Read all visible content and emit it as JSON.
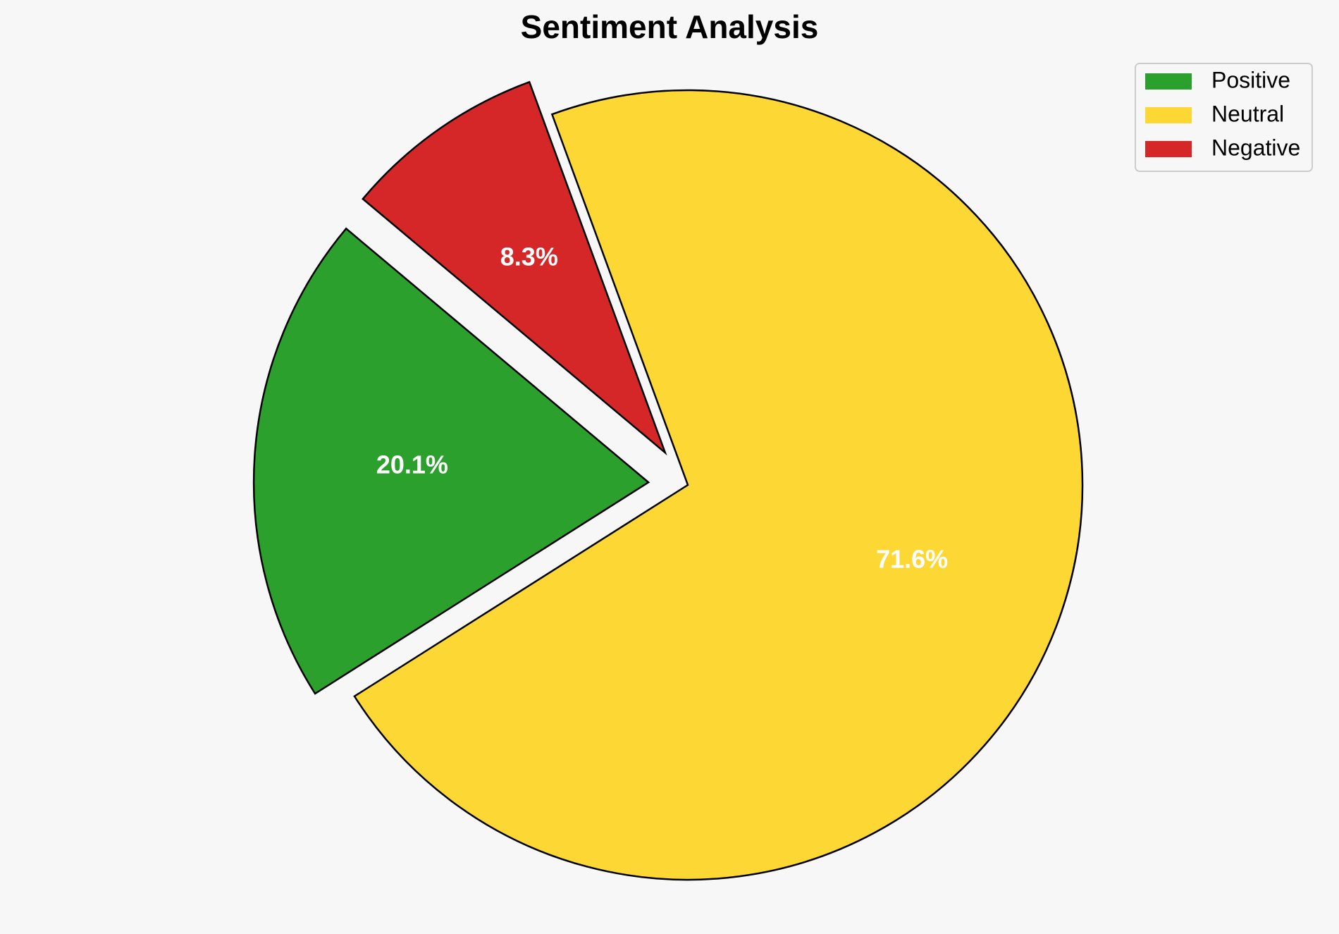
{
  "chart_data": {
    "type": "pie",
    "title": "Sentiment Analysis",
    "slices": [
      {
        "label": "Positive",
        "value": 20.1,
        "display": "20.1%",
        "color": "#2ca02c",
        "exploded": true
      },
      {
        "label": "Neutral",
        "value": 71.6,
        "display": "71.6%",
        "color": "#fdd835",
        "exploded": false
      },
      {
        "label": "Negative",
        "value": 8.3,
        "display": "8.3%",
        "color": "#d62728",
        "exploded": true
      }
    ],
    "legend": {
      "placement": "top-right",
      "entries": [
        "Positive",
        "Neutral",
        "Negative"
      ]
    },
    "edge_color": "#000000",
    "background_color": "#f7f7f7"
  }
}
